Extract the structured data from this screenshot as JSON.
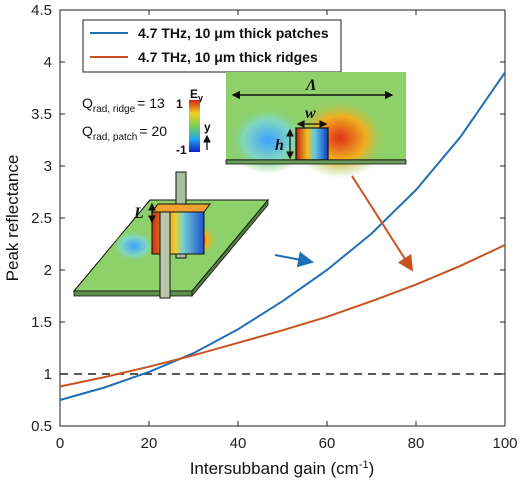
{
  "chart_data": {
    "type": "line",
    "xlabel": "Intersubband gain (cm⁻¹)",
    "ylabel": "Peak reflectance",
    "xlim": [
      0,
      100
    ],
    "ylim": [
      0.5,
      4.5
    ],
    "xticks": [
      0,
      20,
      40,
      60,
      80,
      100
    ],
    "yticks": [
      0.5,
      1,
      1.5,
      2,
      2.5,
      3,
      3.5,
      4,
      4.5
    ],
    "x": [
      0,
      10,
      20,
      30,
      40,
      50,
      60,
      70,
      80,
      90,
      100
    ],
    "series": [
      {
        "name": "4.7 THz, 10 μm thick patches",
        "color": "#1f6fb5",
        "values": [
          0.75,
          0.87,
          1.02,
          1.2,
          1.43,
          1.7,
          2.0,
          2.35,
          2.77,
          3.28,
          3.9
        ]
      },
      {
        "name": "4.7 THz, 10 μm thick ridges",
        "color": "#c8531f",
        "values": [
          0.88,
          0.97,
          1.07,
          1.18,
          1.3,
          1.42,
          1.55,
          1.7,
          1.86,
          2.04,
          2.24
        ]
      }
    ],
    "reference_line": {
      "y": 1,
      "style": "dashed",
      "color": "#222222"
    },
    "grid": false,
    "legend_position": "top-left",
    "annotations": {
      "q_ridge": {
        "label": "Q",
        "sub": "rad, ridge",
        "value": "= 13"
      },
      "q_patch": {
        "label": "Q",
        "sub": "rad, patch",
        "value": "= 20"
      }
    },
    "inset_labels": {
      "colorbar_title": "E",
      "colorbar_sub": "y",
      "cb_max": "1",
      "cb_min": "-1",
      "axis_y": "y",
      "period": "Λ",
      "width": "w",
      "height": "h",
      "length": "L"
    }
  }
}
